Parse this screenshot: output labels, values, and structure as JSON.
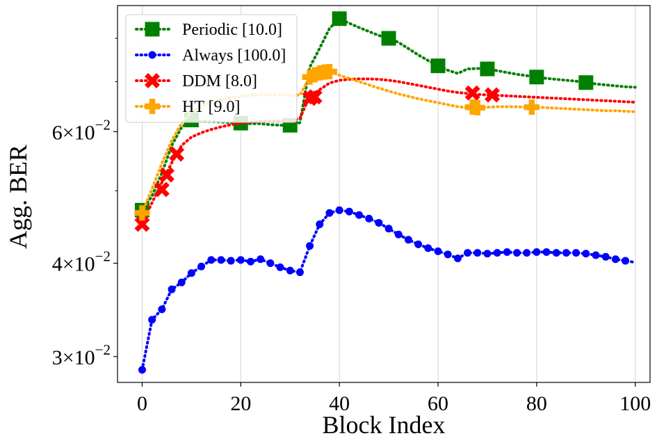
{
  "chart_data": {
    "type": "line",
    "title": "",
    "xlabel": "Block Index",
    "ylabel": "Agg. BER",
    "xlim": [
      -5,
      103
    ],
    "ylim": [
      0.0277,
      0.0885
    ],
    "yscale": "log",
    "grid": "x-only",
    "legend_position": "top-left",
    "x_ticks": [
      0,
      20,
      40,
      60,
      80,
      100
    ],
    "x_tick_labels": [
      "0",
      "20",
      "40",
      "60",
      "80",
      "100"
    ],
    "y_ticks": [
      0.03,
      0.04,
      0.06
    ],
    "y_tick_labels": [
      {
        "mant": "3",
        "times": "×",
        "base": "10",
        "exp": "−2"
      },
      {
        "mant": "4",
        "times": "×",
        "base": "10",
        "exp": "−2"
      },
      {
        "mant": "6",
        "times": "×",
        "base": "10",
        "exp": "−2"
      }
    ],
    "y_minor_ticks": [
      0.05,
      0.07,
      0.08
    ],
    "series": [
      {
        "name": "Periodic [10.0]",
        "color": "#008000",
        "marker": "square",
        "line": {
          "x": [
            0,
            2,
            4,
            6,
            8,
            10,
            12,
            14,
            16,
            18,
            20,
            22,
            24,
            26,
            28,
            30,
            32,
            34,
            36,
            38,
            40,
            42,
            44,
            46,
            48,
            50,
            52,
            54,
            56,
            58,
            60,
            62,
            64,
            66,
            68,
            70,
            72,
            74,
            76,
            78,
            80,
            82,
            84,
            86,
            88,
            90,
            92,
            94,
            96,
            98,
            100
          ],
          "y": [
            0.0471,
            0.0492,
            0.0528,
            0.0575,
            0.0608,
            0.0622,
            0.0619,
            0.0619,
            0.0618,
            0.0617,
            0.0616,
            0.0615,
            0.0615,
            0.0613,
            0.0612,
            0.0612,
            0.0617,
            0.0732,
            0.0776,
            0.0825,
            0.085,
            0.0838,
            0.0827,
            0.0817,
            0.0807,
            0.08,
            0.079,
            0.0775,
            0.076,
            0.0747,
            0.0735,
            0.0725,
            0.0718,
            0.0728,
            0.0729,
            0.0728,
            0.0724,
            0.072,
            0.0716,
            0.0713,
            0.071,
            0.0707,
            0.0705,
            0.0703,
            0.0701,
            0.0698,
            0.0695,
            0.0693,
            0.0691,
            0.0689,
            0.0688
          ]
        },
        "markers": {
          "x": [
            0,
            10,
            20,
            30,
            40,
            50,
            60,
            70,
            80,
            90
          ],
          "y": [
            0.0471,
            0.0622,
            0.0616,
            0.0612,
            0.085,
            0.08,
            0.0735,
            0.0728,
            0.071,
            0.0698
          ]
        }
      },
      {
        "name": "Always [100.0]",
        "color": "#0000ff",
        "marker": "circle",
        "line": {
          "x": [
            0,
            2,
            4,
            6,
            8,
            10,
            12,
            14,
            16,
            18,
            20,
            22,
            24,
            26,
            28,
            30,
            32,
            34,
            36,
            38,
            40,
            42,
            44,
            46,
            48,
            50,
            52,
            54,
            56,
            58,
            60,
            62,
            64,
            66,
            68,
            70,
            72,
            74,
            76,
            78,
            80,
            82,
            84,
            86,
            88,
            90,
            92,
            94,
            96,
            98,
            100
          ],
          "y": [
            0.0288,
            0.0336,
            0.0347,
            0.0369,
            0.0377,
            0.0388,
            0.0396,
            0.0404,
            0.0404,
            0.0403,
            0.0404,
            0.0402,
            0.0405,
            0.04,
            0.0395,
            0.0391,
            0.0389,
            0.0422,
            0.0451,
            0.0467,
            0.0471,
            0.0469,
            0.0464,
            0.0459,
            0.0453,
            0.0445,
            0.0437,
            0.043,
            0.0424,
            0.0419,
            0.0415,
            0.0411,
            0.0406,
            0.0413,
            0.0413,
            0.0412,
            0.0413,
            0.0414,
            0.0413,
            0.0413,
            0.0414,
            0.0414,
            0.0413,
            0.0413,
            0.0413,
            0.0412,
            0.041,
            0.0408,
            0.0405,
            0.0403,
            0.0401
          ]
        },
        "markers": {
          "x": [
            0,
            2,
            4,
            6,
            8,
            10,
            12,
            14,
            16,
            18,
            20,
            22,
            24,
            26,
            28,
            30,
            32,
            34,
            36,
            38,
            40,
            42,
            44,
            46,
            48,
            50,
            52,
            54,
            56,
            58,
            60,
            62,
            64,
            66,
            68,
            70,
            72,
            74,
            76,
            78,
            80,
            82,
            84,
            86,
            88,
            90,
            92,
            94,
            96,
            98
          ],
          "y": [
            0.0288,
            0.0336,
            0.0347,
            0.0369,
            0.0377,
            0.0388,
            0.0396,
            0.0404,
            0.0404,
            0.0403,
            0.0404,
            0.0402,
            0.0405,
            0.04,
            0.0395,
            0.0391,
            0.0389,
            0.0422,
            0.0451,
            0.0467,
            0.0471,
            0.0469,
            0.0464,
            0.0459,
            0.0453,
            0.0445,
            0.0437,
            0.043,
            0.0424,
            0.0419,
            0.0415,
            0.0411,
            0.0406,
            0.0413,
            0.0413,
            0.0412,
            0.0413,
            0.0414,
            0.0413,
            0.0413,
            0.0414,
            0.0414,
            0.0413,
            0.0413,
            0.0413,
            0.0412,
            0.041,
            0.0408,
            0.0405,
            0.0403
          ]
        }
      },
      {
        "name": "DDM [8.0]",
        "color": "#ff0000",
        "marker": "x",
        "line": {
          "x": [
            0,
            2,
            4,
            6,
            8,
            10,
            12,
            14,
            16,
            18,
            20,
            22,
            24,
            26,
            28,
            30,
            32,
            34,
            36,
            38,
            40,
            42,
            44,
            46,
            48,
            50,
            52,
            54,
            56,
            58,
            60,
            62,
            64,
            66,
            68,
            70,
            72,
            74,
            76,
            78,
            80,
            82,
            84,
            86,
            88,
            90,
            92,
            94,
            96,
            98,
            100
          ],
          "y": [
            0.0451,
            0.0482,
            0.0513,
            0.0545,
            0.0575,
            0.059,
            0.0598,
            0.0604,
            0.0609,
            0.0613,
            0.0616,
            0.0618,
            0.0619,
            0.062,
            0.062,
            0.0621,
            0.0625,
            0.067,
            0.0683,
            0.0697,
            0.0703,
            0.0705,
            0.0706,
            0.0706,
            0.0705,
            0.0703,
            0.07,
            0.0696,
            0.0692,
            0.0688,
            0.0684,
            0.068,
            0.0677,
            0.0675,
            0.0673,
            0.0672,
            0.0671,
            0.067,
            0.0669,
            0.0668,
            0.0667,
            0.0666,
            0.0665,
            0.0664,
            0.0663,
            0.0662,
            0.0661,
            0.066,
            0.0659,
            0.0658,
            0.0657
          ]
        },
        "markers": {
          "x": [
            0,
            4,
            5,
            7,
            34,
            35,
            67,
            71
          ],
          "y": [
            0.0451,
            0.0502,
            0.0525,
            0.056,
            0.0665,
            0.0668,
            0.0676,
            0.0672
          ]
        }
      },
      {
        "name": "HT [9.0]",
        "color": "#ffa500",
        "marker": "plus",
        "line": {
          "x": [
            0,
            2,
            4,
            6,
            8,
            10,
            12,
            14,
            16,
            18,
            20,
            22,
            24,
            26,
            28,
            30,
            32,
            34,
            36,
            38,
            40,
            42,
            44,
            46,
            48,
            50,
            52,
            54,
            56,
            58,
            60,
            62,
            64,
            66,
            68,
            70,
            72,
            74,
            76,
            78,
            80,
            82,
            84,
            86,
            88,
            90,
            92,
            94,
            96,
            98,
            100
          ],
          "y": [
            0.0467,
            0.0503,
            0.0544,
            0.0584,
            0.0616,
            0.0637,
            0.0649,
            0.0657,
            0.0662,
            0.0666,
            0.0669,
            0.0671,
            0.0672,
            0.0672,
            0.0672,
            0.0671,
            0.0672,
            0.071,
            0.072,
            0.0722,
            0.0714,
            0.0707,
            0.07,
            0.0693,
            0.0686,
            0.068,
            0.0674,
            0.0669,
            0.0664,
            0.066,
            0.0656,
            0.0652,
            0.0648,
            0.0646,
            0.0646,
            0.0647,
            0.0648,
            0.0648,
            0.0648,
            0.0647,
            0.0647,
            0.0646,
            0.0645,
            0.0644,
            0.0643,
            0.0642,
            0.0641,
            0.064,
            0.064,
            0.0639,
            0.0638
          ]
        },
        "markers": {
          "x": [
            0,
            34,
            35,
            36,
            37,
            38,
            67,
            68,
            79
          ],
          "y": [
            0.0467,
            0.071,
            0.0715,
            0.0719,
            0.0721,
            0.0722,
            0.0647,
            0.0646,
            0.0647
          ]
        }
      }
    ]
  }
}
